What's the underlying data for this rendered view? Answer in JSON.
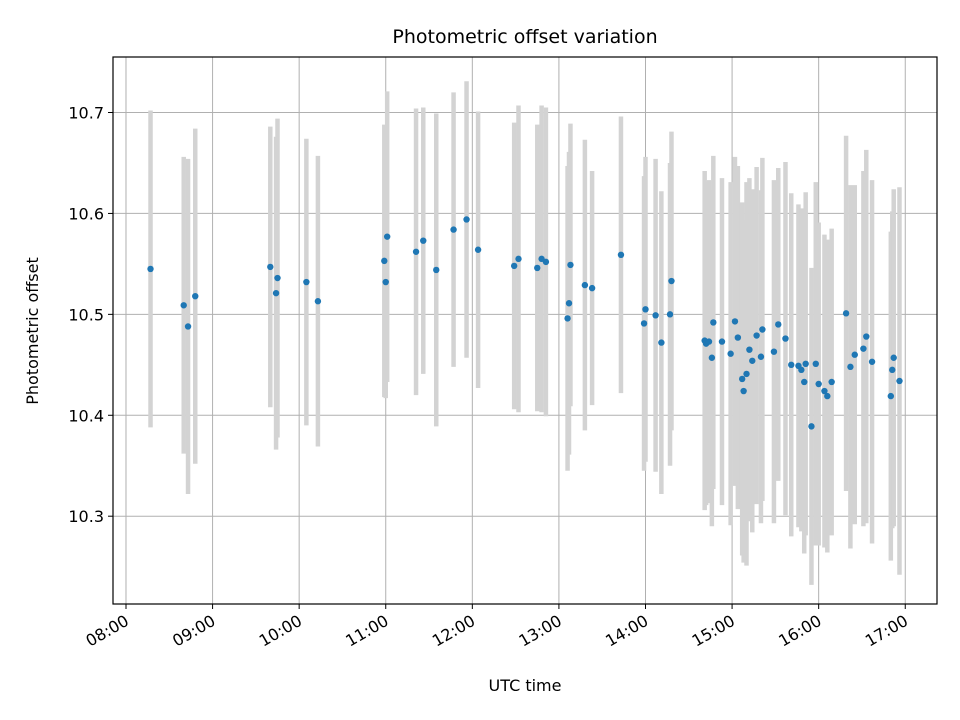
{
  "chart_data": {
    "type": "scatter",
    "title": "Photometric offset variation",
    "xlabel": "UTC time",
    "ylabel": "Photometric offset",
    "x_unit": "hours (UTC)",
    "xlim": [
      "07:51",
      "17:22"
    ],
    "ylim": [
      10.213,
      10.755
    ],
    "x_ticks": [
      "08:00",
      "09:00",
      "10:00",
      "11:00",
      "12:00",
      "13:00",
      "14:00",
      "15:00",
      "16:00",
      "17:00"
    ],
    "y_ticks": [
      "10.3",
      "10.4",
      "10.5",
      "10.6",
      "10.7"
    ],
    "grid": true,
    "colors": {
      "point": "#1f77b4",
      "errorbar": "#d3d3d3",
      "grid": "#b0b0b0"
    },
    "series": [
      {
        "x": [
          "08:17",
          "08:40",
          "08:43",
          "08:48",
          "09:40",
          "09:44",
          "09:45",
          "10:05",
          "10:13",
          "10:59",
          "11:00",
          "11:01",
          "11:21",
          "11:26",
          "11:35",
          "11:47",
          "11:56",
          "12:04",
          "12:29",
          "12:32",
          "12:45",
          "12:48",
          "12:51",
          "13:06",
          "13:07",
          "13:08",
          "13:18",
          "13:23",
          "13:43",
          "13:59",
          "14:00",
          "14:07",
          "14:11",
          "14:17",
          "14:18",
          "14:41",
          "14:42",
          "14:44",
          "14:46",
          "14:47",
          "14:53",
          "14:59",
          "15:02",
          "15:04",
          "15:07",
          "15:08",
          "15:10",
          "15:12",
          "15:14",
          "15:17",
          "15:20",
          "15:21",
          "15:29",
          "15:32",
          "15:37",
          "15:41",
          "15:46",
          "15:48",
          "15:50",
          "15:51",
          "15:55",
          "15:58",
          "16:00",
          "16:04",
          "16:06",
          "16:09",
          "16:19",
          "16:22",
          "16:25",
          "16:31",
          "16:33",
          "16:37",
          "16:50",
          "16:51",
          "16:52",
          "16:56"
        ],
        "y": [
          10.545,
          10.509,
          10.488,
          10.518,
          10.547,
          10.521,
          10.536,
          10.532,
          10.513,
          10.553,
          10.532,
          10.577,
          10.562,
          10.573,
          10.544,
          10.584,
          10.594,
          10.564,
          10.548,
          10.555,
          10.546,
          10.555,
          10.552,
          10.496,
          10.511,
          10.549,
          10.529,
          10.526,
          10.559,
          10.491,
          10.505,
          10.499,
          10.472,
          10.5,
          10.533,
          10.474,
          10.471,
          10.473,
          10.457,
          10.492,
          10.473,
          10.461,
          10.493,
          10.477,
          10.436,
          10.424,
          10.441,
          10.465,
          10.454,
          10.479,
          10.458,
          10.485,
          10.463,
          10.49,
          10.476,
          10.45,
          10.449,
          10.445,
          10.433,
          10.451,
          10.389,
          10.451,
          10.431,
          10.424,
          10.419,
          10.433,
          10.501,
          10.448,
          10.46,
          10.466,
          10.478,
          10.453,
          10.419,
          10.445,
          10.457,
          10.434
        ],
        "error": [
          0.157,
          0.147,
          0.166,
          0.166,
          0.139,
          0.155,
          0.158,
          0.142,
          0.144,
          0.135,
          0.115,
          0.144,
          0.142,
          0.132,
          0.155,
          0.136,
          0.137,
          0.137,
          0.142,
          0.152,
          0.142,
          0.152,
          0.153,
          0.151,
          0.15,
          0.14,
          0.144,
          0.116,
          0.137,
          0.146,
          0.151,
          0.155,
          0.15,
          0.15,
          0.148,
          0.168,
          0.16,
          0.16,
          0.167,
          0.165,
          0.162,
          0.17,
          0.163,
          0.17,
          0.175,
          0.17,
          0.19,
          0.17,
          0.17,
          0.167,
          0.165,
          0.17,
          0.17,
          0.155,
          0.175,
          0.17,
          0.16,
          0.16,
          0.17,
          0.17,
          0.157,
          0.18,
          0.16,
          0.155,
          0.155,
          0.152,
          0.176,
          0.18,
          0.168,
          0.176,
          0.185,
          0.18,
          0.163,
          0.157,
          0.167,
          0.192
        ]
      }
    ]
  }
}
